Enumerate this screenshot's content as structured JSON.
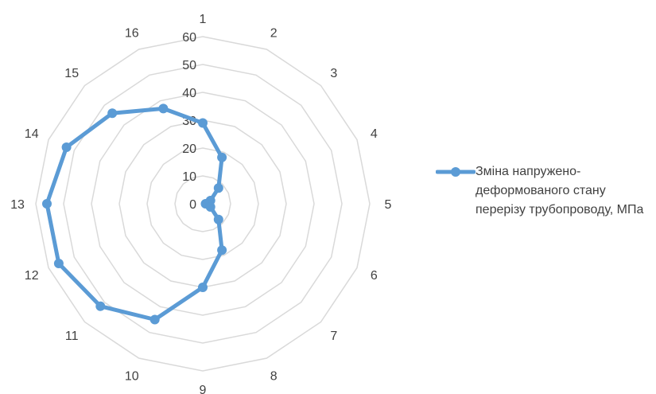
{
  "chart_data": {
    "type": "radar",
    "categories": [
      "1",
      "2",
      "3",
      "4",
      "5",
      "6",
      "7",
      "8",
      "9",
      "10",
      "11",
      "12",
      "13",
      "14",
      "15",
      "16"
    ],
    "series": [
      {
        "name": "Зміна напружено-деформованого стану перерізу трубопроводу, МПа",
        "color": "#5B9BD5",
        "values": [
          29,
          18,
          8,
          3,
          1,
          3,
          8,
          18,
          30,
          45,
          52,
          56,
          56,
          53,
          46,
          37
        ]
      }
    ],
    "rlim": [
      0,
      60
    ],
    "rticks": [
      "0",
      "10",
      "20",
      "30",
      "40",
      "50",
      "60"
    ],
    "grid": true,
    "legend": "right"
  }
}
